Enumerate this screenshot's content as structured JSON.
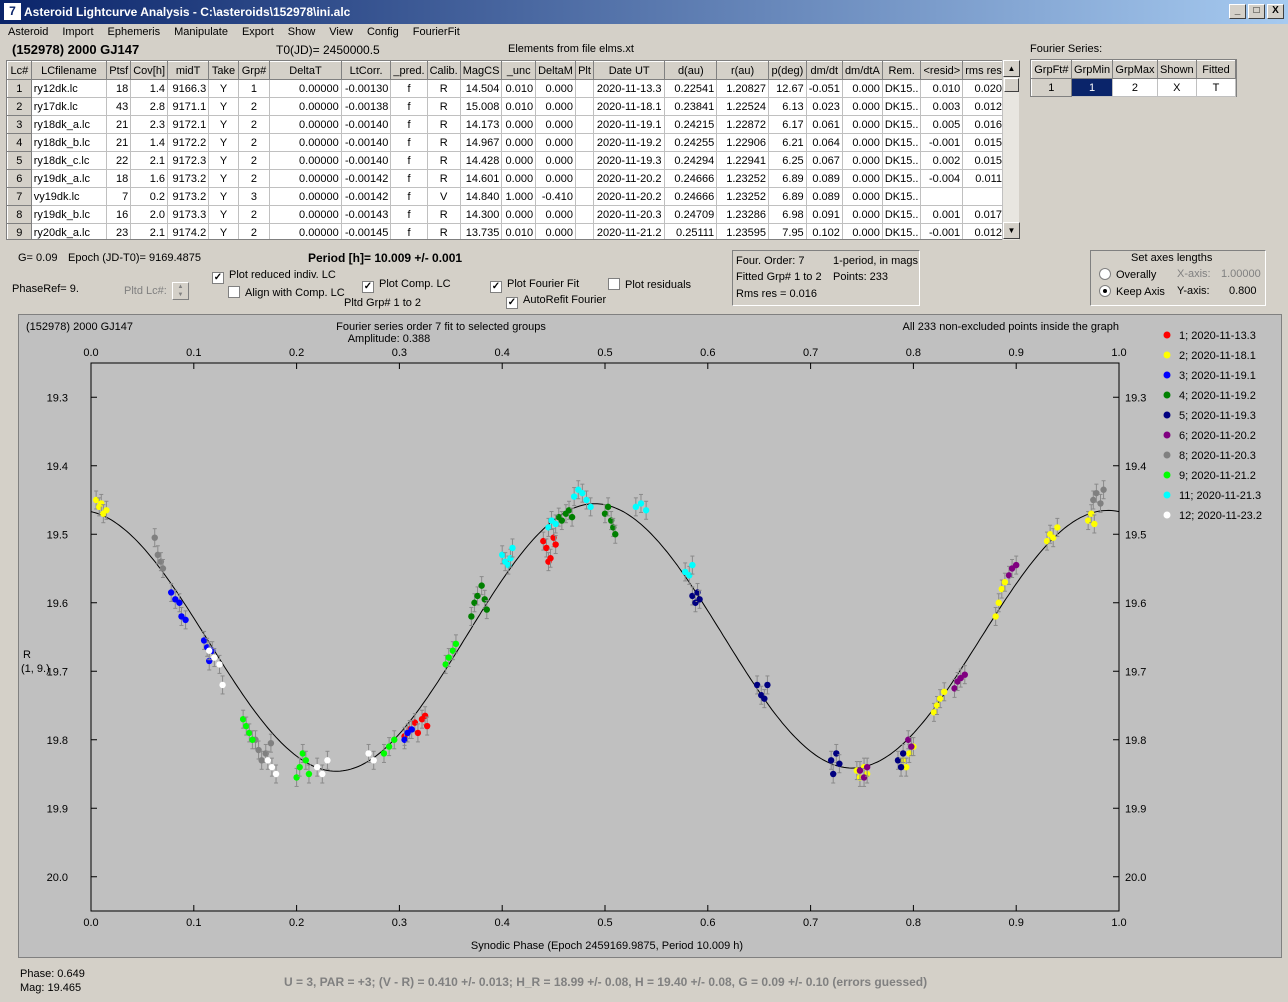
{
  "window": {
    "title": "Asteroid Lightcurve Analysis - C:\\asteroids\\152978\\ini.alc",
    "icon": "alc-app-icon",
    "controls": [
      "_",
      "□",
      "X"
    ]
  },
  "menu": [
    "Asteroid",
    "Import",
    "Ephemeris",
    "Manipulate",
    "Export",
    "Show",
    "View",
    "Config",
    "FourierFit"
  ],
  "header": {
    "asteroid": "(152978) 2000 GJ147",
    "t0": "T0(JD)= 2450000.5",
    "elements": "Elements from file elms.xt",
    "fourier_title": "Fourier Series:"
  },
  "lc_table": {
    "columns": [
      "Lc#",
      "LCfilename",
      "Ptsf",
      "Cov[h]",
      "midT",
      "Take",
      "Grp#",
      "DeltaT",
      "LtCorr.",
      "_pred.",
      "Calib.",
      "MagCS",
      "_unc",
      "DeltaM",
      "Plt",
      "Date UT",
      "d(au)",
      "r(au)",
      "p(deg)",
      "dm/dt",
      "dm/dtA",
      "Rem.",
      "<resid>",
      "rms res"
    ],
    "rows": [
      [
        "1",
        "ry12dk.lc",
        "18",
        "1.4",
        "9166.3",
        "Y",
        "1",
        "0.00000",
        "-0.00130",
        "f",
        "R",
        "14.504",
        "0.010",
        "0.000",
        "",
        "2020-11-13.3",
        "0.22541",
        "1.20827",
        "12.67",
        "-0.051",
        "0.000",
        "DK15..",
        "0.010",
        "0.020"
      ],
      [
        "2",
        "ry17dk.lc",
        "43",
        "2.8",
        "9171.1",
        "Y",
        "2",
        "0.00000",
        "-0.00138",
        "f",
        "R",
        "15.008",
        "0.010",
        "0.000",
        "",
        "2020-11-18.1",
        "0.23841",
        "1.22524",
        "6.13",
        "0.023",
        "0.000",
        "DK15..",
        "0.003",
        "0.012"
      ],
      [
        "3",
        "ry18dk_a.lc",
        "21",
        "2.3",
        "9172.1",
        "Y",
        "2",
        "0.00000",
        "-0.00140",
        "f",
        "R",
        "14.173",
        "0.000",
        "0.000",
        "",
        "2020-11-19.1",
        "0.24215",
        "1.22872",
        "6.17",
        "0.061",
        "0.000",
        "DK15..",
        "0.005",
        "0.016"
      ],
      [
        "4",
        "ry18dk_b.lc",
        "21",
        "1.4",
        "9172.2",
        "Y",
        "2",
        "0.00000",
        "-0.00140",
        "f",
        "R",
        "14.967",
        "0.000",
        "0.000",
        "",
        "2020-11-19.2",
        "0.24255",
        "1.22906",
        "6.21",
        "0.064",
        "0.000",
        "DK15..",
        "-0.001",
        "0.015"
      ],
      [
        "5",
        "ry18dk_c.lc",
        "22",
        "2.1",
        "9172.3",
        "Y",
        "2",
        "0.00000",
        "-0.00140",
        "f",
        "R",
        "14.428",
        "0.000",
        "0.000",
        "",
        "2020-11-19.3",
        "0.24294",
        "1.22941",
        "6.25",
        "0.067",
        "0.000",
        "DK15..",
        "0.002",
        "0.015"
      ],
      [
        "6",
        "ry19dk_a.lc",
        "18",
        "1.6",
        "9173.2",
        "Y",
        "2",
        "0.00000",
        "-0.00142",
        "f",
        "R",
        "14.601",
        "0.000",
        "0.000",
        "",
        "2020-11-20.2",
        "0.24666",
        "1.23252",
        "6.89",
        "0.089",
        "0.000",
        "DK15..",
        "-0.004",
        "0.011"
      ],
      [
        "7",
        "vy19dk.lc",
        "7",
        "0.2",
        "9173.2",
        "Y",
        "3",
        "0.00000",
        "-0.00142",
        "f",
        "V",
        "14.840",
        "1.000",
        "-0.410",
        "",
        "2020-11-20.2",
        "0.24666",
        "1.23252",
        "6.89",
        "0.089",
        "0.000",
        "DK15..",
        "",
        ""
      ],
      [
        "8",
        "ry19dk_b.lc",
        "16",
        "2.0",
        "9173.3",
        "Y",
        "2",
        "0.00000",
        "-0.00143",
        "f",
        "R",
        "14.300",
        "0.000",
        "0.000",
        "",
        "2020-11-20.3",
        "0.24709",
        "1.23286",
        "6.98",
        "0.091",
        "0.000",
        "DK15..",
        "0.001",
        "0.017"
      ],
      [
        "9",
        "ry20dk_a.lc",
        "23",
        "2.1",
        "9174.2",
        "Y",
        "2",
        "0.00000",
        "-0.00145",
        "f",
        "R",
        "13.735",
        "0.010",
        "0.000",
        "",
        "2020-11-21.2",
        "0.25111",
        "1.23595",
        "7.95",
        "0.102",
        "0.000",
        "DK15..",
        "-0.001",
        "0.012"
      ]
    ]
  },
  "fourier_series": {
    "columns": [
      "GrpFt#",
      "GrpMin",
      "GrpMax",
      "Shown",
      "Fitted"
    ],
    "row": [
      "1",
      "1",
      "2",
      "X",
      "T"
    ]
  },
  "params": {
    "g": "G= 0.09",
    "epoch": "Epoch (JD-T0)= 9169.4875",
    "period": "Period [h]= 10.009 +/- 0.001",
    "phaseref": "PhaseRef= 9.",
    "pltd_lc": "Pltd Lc#:",
    "pltd_grp": "Pltd Grp#  1   to   2"
  },
  "checkboxes": {
    "reduced": {
      "label": "Plot reduced indiv. LC",
      "checked": true
    },
    "align": {
      "label": "Align with Comp. LC",
      "checked": false
    },
    "comp": {
      "label": "Plot Comp. LC",
      "checked": true
    },
    "fourier": {
      "label": "Plot Fourier Fit",
      "checked": true
    },
    "autorefit": {
      "label": "AutoRefit Fourier",
      "checked": true
    },
    "residuals": {
      "label": "Plot residuals",
      "checked": false
    }
  },
  "fit_info": {
    "order": "Four. Order:  7",
    "oneperiod": "1-period, in mags",
    "fitted": "Fitted Grp# 1 to 2",
    "points": "Points: 233",
    "rms": "Rms res     = 0.016"
  },
  "axes_box": {
    "title": "Set axes lengths",
    "overally": "Overally",
    "keep": "Keep Axis",
    "xaxis_label": "X-axis:",
    "xaxis_val": "1.00000",
    "yaxis_label": "Y-axis:",
    "yaxis_val": "0.800",
    "selected": "keep"
  },
  "status": {
    "phase": "Phase:  0.649",
    "mag": "Mag:    19.465",
    "summary": "U = 3, PAR = +3; (V - R) = 0.410 +/- 0.013; H_R = 18.99 +/- 0.08, H = 19.40 +/- 0.08, G = 0.09 +/- 0.10 (errors guessed)"
  },
  "chart_data": {
    "type": "scatter",
    "title": "Fourier series order 7 fit to selected groups",
    "subtitle": "Amplitude: 0.388",
    "object_label": "(152978) 2000 GJ147",
    "note": "All 233 non-excluded points inside the graph",
    "xlabel": "Synodic Phase (Epoch 2459169.9875, Period 10.009 h)",
    "ylabel": "R",
    "ylabel2": "(1, 9.)",
    "xlim": [
      0,
      1.0
    ],
    "ylim": [
      20.05,
      19.25
    ],
    "x_ticks": [
      "0.0",
      "0.1",
      "0.2",
      "0.3",
      "0.4",
      "0.5",
      "0.6",
      "0.7",
      "0.8",
      "0.9",
      "1.0"
    ],
    "y_ticks": [
      "19.3",
      "19.4",
      "19.5",
      "19.6",
      "19.7",
      "19.8",
      "19.9",
      "20.0"
    ],
    "grid": false,
    "legend_position": "right",
    "fit_curve": {
      "mean": 19.652,
      "a1": 0.005,
      "b1": 0.002,
      "a2": -0.19,
      "b2": 0.025
    },
    "series": [
      {
        "name": "1; 2020-11-13.3",
        "color": "#ff0000",
        "points": [
          [
            0.305,
            19.795
          ],
          [
            0.31,
            19.785
          ],
          [
            0.315,
            19.775
          ],
          [
            0.318,
            19.79
          ],
          [
            0.322,
            19.77
          ],
          [
            0.325,
            19.765
          ],
          [
            0.327,
            19.78
          ],
          [
            0.44,
            19.51
          ],
          [
            0.443,
            19.52
          ],
          [
            0.445,
            19.54
          ],
          [
            0.447,
            19.535
          ],
          [
            0.45,
            19.505
          ],
          [
            0.452,
            19.515
          ]
        ]
      },
      {
        "name": "2; 2020-11-18.1",
        "color": "#ffff00",
        "points": [
          [
            0.005,
            19.45
          ],
          [
            0.008,
            19.46
          ],
          [
            0.01,
            19.455
          ],
          [
            0.012,
            19.47
          ],
          [
            0.015,
            19.465
          ],
          [
            0.745,
            19.845
          ],
          [
            0.748,
            19.855
          ],
          [
            0.752,
            19.84
          ],
          [
            0.755,
            19.85
          ],
          [
            0.79,
            19.83
          ],
          [
            0.793,
            19.84
          ],
          [
            0.796,
            19.82
          ],
          [
            0.8,
            19.81
          ],
          [
            0.82,
            19.76
          ],
          [
            0.823,
            19.75
          ],
          [
            0.826,
            19.74
          ],
          [
            0.83,
            19.73
          ],
          [
            0.88,
            19.62
          ],
          [
            0.883,
            19.6
          ],
          [
            0.886,
            19.58
          ],
          [
            0.889,
            19.57
          ],
          [
            0.93,
            19.51
          ],
          [
            0.933,
            19.5
          ],
          [
            0.936,
            19.505
          ],
          [
            0.94,
            19.49
          ],
          [
            0.97,
            19.48
          ],
          [
            0.973,
            19.47
          ],
          [
            0.976,
            19.485
          ]
        ]
      },
      {
        "name": "3; 2020-11-19.1",
        "color": "#0000ff",
        "points": [
          [
            0.078,
            19.585
          ],
          [
            0.082,
            19.595
          ],
          [
            0.086,
            19.6
          ],
          [
            0.088,
            19.62
          ],
          [
            0.092,
            19.625
          ],
          [
            0.11,
            19.655
          ],
          [
            0.113,
            19.665
          ],
          [
            0.115,
            19.685
          ],
          [
            0.118,
            19.67
          ],
          [
            0.305,
            19.8
          ],
          [
            0.308,
            19.79
          ],
          [
            0.312,
            19.785
          ]
        ]
      },
      {
        "name": "4; 2020-11-19.2",
        "color": "#008000",
        "points": [
          [
            0.37,
            19.62
          ],
          [
            0.373,
            19.6
          ],
          [
            0.376,
            19.59
          ],
          [
            0.38,
            19.575
          ],
          [
            0.383,
            19.595
          ],
          [
            0.385,
            19.61
          ],
          [
            0.455,
            19.475
          ],
          [
            0.458,
            19.48
          ],
          [
            0.462,
            19.47
          ],
          [
            0.465,
            19.465
          ],
          [
            0.468,
            19.475
          ],
          [
            0.5,
            19.47
          ],
          [
            0.503,
            19.46
          ],
          [
            0.506,
            19.48
          ],
          [
            0.508,
            19.49
          ],
          [
            0.51,
            19.5
          ]
        ]
      },
      {
        "name": "5; 2020-11-19.3",
        "color": "#000080",
        "points": [
          [
            0.585,
            19.59
          ],
          [
            0.588,
            19.6
          ],
          [
            0.59,
            19.585
          ],
          [
            0.592,
            19.595
          ],
          [
            0.648,
            19.72
          ],
          [
            0.652,
            19.735
          ],
          [
            0.655,
            19.74
          ],
          [
            0.658,
            19.72
          ],
          [
            0.72,
            19.83
          ],
          [
            0.722,
            19.85
          ],
          [
            0.725,
            19.82
          ],
          [
            0.728,
            19.835
          ],
          [
            0.785,
            19.83
          ],
          [
            0.788,
            19.84
          ],
          [
            0.79,
            19.82
          ]
        ]
      },
      {
        "name": "6; 2020-11-20.2",
        "color": "#800080",
        "points": [
          [
            0.748,
            19.845
          ],
          [
            0.752,
            19.855
          ],
          [
            0.755,
            19.84
          ],
          [
            0.795,
            19.8
          ],
          [
            0.798,
            19.81
          ],
          [
            0.84,
            19.725
          ],
          [
            0.843,
            19.715
          ],
          [
            0.846,
            19.71
          ],
          [
            0.85,
            19.705
          ],
          [
            0.893,
            19.56
          ],
          [
            0.896,
            19.55
          ],
          [
            0.9,
            19.545
          ]
        ]
      },
      {
        "name": "8; 2020-11-20.3",
        "color": "#808080",
        "points": [
          [
            0.062,
            19.505
          ],
          [
            0.065,
            19.53
          ],
          [
            0.068,
            19.54
          ],
          [
            0.07,
            19.55
          ],
          [
            0.16,
            19.8
          ],
          [
            0.163,
            19.815
          ],
          [
            0.166,
            19.83
          ],
          [
            0.17,
            19.82
          ],
          [
            0.175,
            19.805
          ],
          [
            0.975,
            19.45
          ],
          [
            0.978,
            19.44
          ],
          [
            0.982,
            19.455
          ],
          [
            0.985,
            19.435
          ]
        ]
      },
      {
        "name": "9; 2020-11-21.2",
        "color": "#00ff00",
        "points": [
          [
            0.148,
            19.77
          ],
          [
            0.151,
            19.78
          ],
          [
            0.154,
            19.79
          ],
          [
            0.157,
            19.8
          ],
          [
            0.2,
            19.855
          ],
          [
            0.203,
            19.84
          ],
          [
            0.206,
            19.82
          ],
          [
            0.209,
            19.83
          ],
          [
            0.212,
            19.85
          ],
          [
            0.285,
            19.82
          ],
          [
            0.29,
            19.81
          ],
          [
            0.295,
            19.8
          ],
          [
            0.345,
            19.69
          ],
          [
            0.348,
            19.68
          ],
          [
            0.352,
            19.67
          ],
          [
            0.355,
            19.66
          ]
        ]
      },
      {
        "name": "11; 2020-11-21.3",
        "color": "#00ffff",
        "points": [
          [
            0.4,
            19.53
          ],
          [
            0.403,
            19.54
          ],
          [
            0.406,
            19.545
          ],
          [
            0.408,
            19.535
          ],
          [
            0.41,
            19.52
          ],
          [
            0.445,
            19.49
          ],
          [
            0.448,
            19.48
          ],
          [
            0.452,
            19.485
          ],
          [
            0.47,
            19.445
          ],
          [
            0.474,
            19.435
          ],
          [
            0.478,
            19.44
          ],
          [
            0.482,
            19.45
          ],
          [
            0.486,
            19.46
          ],
          [
            0.53,
            19.46
          ],
          [
            0.535,
            19.455
          ],
          [
            0.54,
            19.465
          ],
          [
            0.578,
            19.555
          ],
          [
            0.582,
            19.56
          ],
          [
            0.585,
            19.545
          ]
        ]
      },
      {
        "name": "12; 2020-11-23.2",
        "color": "#ffffff",
        "points": [
          [
            0.115,
            19.67
          ],
          [
            0.12,
            19.68
          ],
          [
            0.125,
            19.69
          ],
          [
            0.128,
            19.72
          ],
          [
            0.172,
            19.83
          ],
          [
            0.176,
            19.84
          ],
          [
            0.18,
            19.85
          ],
          [
            0.22,
            19.84
          ],
          [
            0.225,
            19.85
          ],
          [
            0.23,
            19.83
          ],
          [
            0.27,
            19.82
          ],
          [
            0.275,
            19.83
          ]
        ]
      }
    ]
  }
}
